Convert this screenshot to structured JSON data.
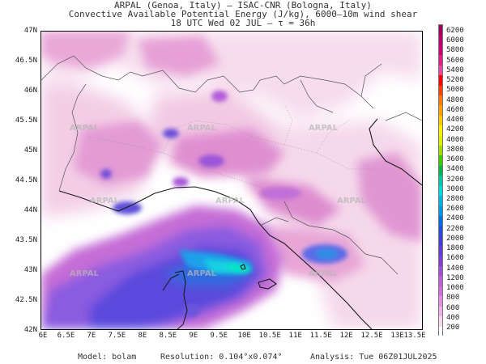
{
  "header": {
    "line1": "ARPAL (Genoa, Italy)  –  ISAC-CNR (Bologna, Italy)",
    "line2": "Convective Available Potential Energy (J/kg), 6000–10m wind shear",
    "line3": "18 UTC Wed 02 JUL  –  τ = 36h"
  },
  "map": {
    "lat_labels": [
      "47N",
      "46.5N",
      "46N",
      "45.5N",
      "45N",
      "44.5N",
      "44N",
      "43.5N",
      "43N",
      "42.5N",
      "42N"
    ],
    "lon_labels": [
      "6E",
      "6.5E",
      "7E",
      "7.5E",
      "8E",
      "8.5E",
      "9E",
      "9.5E",
      "10E",
      "10.5E",
      "11E",
      "11.5E",
      "12E",
      "12.5E",
      "13E",
      "13.5E"
    ],
    "lat_range": [
      42,
      47
    ],
    "lon_range": [
      6,
      13.5
    ],
    "watermark": "ARPAL"
  },
  "colorbar": {
    "labels": [
      "6200",
      "6000",
      "5800",
      "5600",
      "5400",
      "5200",
      "5000",
      "4800",
      "4600",
      "4400",
      "4200",
      "4000",
      "3800",
      "3600",
      "3400",
      "3200",
      "3000",
      "2800",
      "2600",
      "2400",
      "2200",
      "2000",
      "1800",
      "1600",
      "1400",
      "1200",
      "1000",
      "800",
      "600",
      "400",
      "200"
    ],
    "colors": [
      "#9e0063",
      "#b3006e",
      "#c8007a",
      "#dc2288",
      "#e64a99",
      "#ff0000",
      "#ff4000",
      "#ff7a00",
      "#ffa000",
      "#ffc800",
      "#ffee00",
      "#e0ee00",
      "#a0dc00",
      "#40c800",
      "#00b450",
      "#00c8a0",
      "#00dcdc",
      "#00b4e6",
      "#0096e6",
      "#0070e0",
      "#2050dc",
      "#4040d8",
      "#6040d8",
      "#8040d0",
      "#a050d8",
      "#c060d8",
      "#d070d8",
      "#e090e0",
      "#f0b0e8",
      "#f8d8f0",
      "#ffffff"
    ]
  },
  "footer": {
    "model": "Model: bolam",
    "resolution": "Resolution: 0.104°x0.074°",
    "analysis": "Analysis: Tue 06Z01JUL2025"
  }
}
